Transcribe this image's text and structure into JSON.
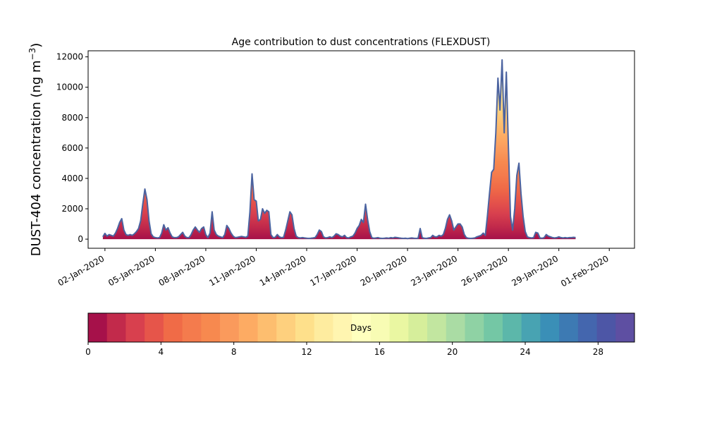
{
  "chart_data": {
    "type": "area",
    "title": "Age contribution to dust concentrations (FLEXDUST)",
    "ylabel_main": "DUST-404 concentration (ng m",
    "ylabel_sup": "−3",
    "ylabel_close": ")",
    "xlabel": "",
    "x_tick_labels": [
      "02-Jan-2020",
      "05-Jan-2020",
      "08-Jan-2020",
      "11-Jan-2020",
      "14-Jan-2020",
      "17-Jan-2020",
      "20-Jan-2020",
      "23-Jan-2020",
      "26-Jan-2020",
      "29-Jan-2020",
      "01-Feb-2020"
    ],
    "x_tick_dates": [
      "2020-01-02",
      "2020-01-05",
      "2020-01-08",
      "2020-01-11",
      "2020-01-14",
      "2020-01-17",
      "2020-01-20",
      "2020-01-23",
      "2020-01-26",
      "2020-01-29",
      "2020-02-01"
    ],
    "xlim": [
      "2020-01-01T00:00",
      "2020-02-02T12:00"
    ],
    "ylim": [
      -600,
      12400
    ],
    "y_ticks": [
      0,
      2000,
      4000,
      6000,
      8000,
      10000,
      12000
    ],
    "grid": false,
    "total_series": {
      "name": "",
      "color": "#4b63a0",
      "points": [
        [
          "2020-01-01T21:00",
          150
        ],
        [
          "2020-01-02T00:00",
          380
        ],
        [
          "2020-01-02T03:00",
          200
        ],
        [
          "2020-01-02T06:00",
          300
        ],
        [
          "2020-01-02T09:00",
          250
        ],
        [
          "2020-01-02T12:00",
          200
        ],
        [
          "2020-01-02T15:00",
          400
        ],
        [
          "2020-01-02T18:00",
          700
        ],
        [
          "2020-01-02T21:00",
          1100
        ],
        [
          "2020-01-03T00:00",
          1350
        ],
        [
          "2020-01-03T03:00",
          600
        ],
        [
          "2020-01-03T06:00",
          300
        ],
        [
          "2020-01-03T09:00",
          250
        ],
        [
          "2020-01-03T12:00",
          300
        ],
        [
          "2020-01-03T15:00",
          250
        ],
        [
          "2020-01-03T18:00",
          350
        ],
        [
          "2020-01-03T21:00",
          500
        ],
        [
          "2020-01-04T00:00",
          700
        ],
        [
          "2020-01-04T03:00",
          1200
        ],
        [
          "2020-01-04T06:00",
          2300
        ],
        [
          "2020-01-04T09:00",
          3300
        ],
        [
          "2020-01-04T12:00",
          2600
        ],
        [
          "2020-01-04T15:00",
          1200
        ],
        [
          "2020-01-04T18:00",
          350
        ],
        [
          "2020-01-04T21:00",
          150
        ],
        [
          "2020-01-05T00:00",
          100
        ],
        [
          "2020-01-05T03:00",
          80
        ],
        [
          "2020-01-05T06:00",
          100
        ],
        [
          "2020-01-05T09:00",
          400
        ],
        [
          "2020-01-05T12:00",
          950
        ],
        [
          "2020-01-05T15:00",
          600
        ],
        [
          "2020-01-05T18:00",
          750
        ],
        [
          "2020-01-05T21:00",
          400
        ],
        [
          "2020-01-06T00:00",
          150
        ],
        [
          "2020-01-06T03:00",
          100
        ],
        [
          "2020-01-06T06:00",
          100
        ],
        [
          "2020-01-06T09:00",
          150
        ],
        [
          "2020-01-06T12:00",
          300
        ],
        [
          "2020-01-06T15:00",
          450
        ],
        [
          "2020-01-06T18:00",
          200
        ],
        [
          "2020-01-06T21:00",
          100
        ],
        [
          "2020-01-07T00:00",
          100
        ],
        [
          "2020-01-07T03:00",
          300
        ],
        [
          "2020-01-07T06:00",
          600
        ],
        [
          "2020-01-07T09:00",
          800
        ],
        [
          "2020-01-07T12:00",
          600
        ],
        [
          "2020-01-07T15:00",
          450
        ],
        [
          "2020-01-07T18:00",
          700
        ],
        [
          "2020-01-07T21:00",
          800
        ],
        [
          "2020-01-08T00:00",
          300
        ],
        [
          "2020-01-08T03:00",
          100
        ],
        [
          "2020-01-08T06:00",
          400
        ],
        [
          "2020-01-08T09:00",
          1800
        ],
        [
          "2020-01-08T12:00",
          600
        ],
        [
          "2020-01-08T15:00",
          300
        ],
        [
          "2020-01-08T18:00",
          200
        ],
        [
          "2020-01-08T21:00",
          150
        ],
        [
          "2020-01-09T00:00",
          100
        ],
        [
          "2020-01-09T03:00",
          300
        ],
        [
          "2020-01-09T06:00",
          900
        ],
        [
          "2020-01-09T09:00",
          700
        ],
        [
          "2020-01-09T12:00",
          400
        ],
        [
          "2020-01-09T15:00",
          200
        ],
        [
          "2020-01-09T18:00",
          100
        ],
        [
          "2020-01-09T21:00",
          120
        ],
        [
          "2020-01-10T00:00",
          150
        ],
        [
          "2020-01-10T03:00",
          180
        ],
        [
          "2020-01-10T06:00",
          150
        ],
        [
          "2020-01-10T09:00",
          120
        ],
        [
          "2020-01-10T12:00",
          200
        ],
        [
          "2020-01-10T15:00",
          1800
        ],
        [
          "2020-01-10T18:00",
          4300
        ],
        [
          "2020-01-10T21:00",
          2600
        ],
        [
          "2020-01-11T00:00",
          2500
        ],
        [
          "2020-01-11T03:00",
          1200
        ],
        [
          "2020-01-11T06:00",
          1300
        ],
        [
          "2020-01-11T09:00",
          2000
        ],
        [
          "2020-01-11T12:00",
          1700
        ],
        [
          "2020-01-11T15:00",
          1900
        ],
        [
          "2020-01-11T18:00",
          1800
        ],
        [
          "2020-01-11T21:00",
          300
        ],
        [
          "2020-01-12T00:00",
          100
        ],
        [
          "2020-01-12T03:00",
          120
        ],
        [
          "2020-01-12T06:00",
          300
        ],
        [
          "2020-01-12T09:00",
          150
        ],
        [
          "2020-01-12T12:00",
          100
        ],
        [
          "2020-01-12T15:00",
          120
        ],
        [
          "2020-01-12T18:00",
          600
        ],
        [
          "2020-01-12T21:00",
          1200
        ],
        [
          "2020-01-13T00:00",
          1800
        ],
        [
          "2020-01-13T03:00",
          1600
        ],
        [
          "2020-01-13T06:00",
          700
        ],
        [
          "2020-01-13T09:00",
          200
        ],
        [
          "2020-01-13T12:00",
          100
        ],
        [
          "2020-01-13T15:00",
          80
        ],
        [
          "2020-01-13T18:00",
          100
        ],
        [
          "2020-01-13T21:00",
          80
        ],
        [
          "2020-01-14T00:00",
          60
        ],
        [
          "2020-01-14T03:00",
          50
        ],
        [
          "2020-01-14T06:00",
          60
        ],
        [
          "2020-01-14T09:00",
          80
        ],
        [
          "2020-01-14T12:00",
          100
        ],
        [
          "2020-01-14T15:00",
          300
        ],
        [
          "2020-01-14T18:00",
          600
        ],
        [
          "2020-01-14T21:00",
          500
        ],
        [
          "2020-01-15T00:00",
          150
        ],
        [
          "2020-01-15T03:00",
          80
        ],
        [
          "2020-01-15T06:00",
          100
        ],
        [
          "2020-01-15T09:00",
          150
        ],
        [
          "2020-01-15T12:00",
          100
        ],
        [
          "2020-01-15T15:00",
          200
        ],
        [
          "2020-01-15T18:00",
          350
        ],
        [
          "2020-01-15T21:00",
          300
        ],
        [
          "2020-01-16T00:00",
          200
        ],
        [
          "2020-01-16T03:00",
          150
        ],
        [
          "2020-01-16T06:00",
          250
        ],
        [
          "2020-01-16T09:00",
          100
        ],
        [
          "2020-01-16T12:00",
          80
        ],
        [
          "2020-01-16T15:00",
          150
        ],
        [
          "2020-01-16T18:00",
          200
        ],
        [
          "2020-01-16T21:00",
          400
        ],
        [
          "2020-01-17T00:00",
          700
        ],
        [
          "2020-01-17T03:00",
          900
        ],
        [
          "2020-01-17T06:00",
          1300
        ],
        [
          "2020-01-17T09:00",
          1100
        ],
        [
          "2020-01-17T12:00",
          2300
        ],
        [
          "2020-01-17T15:00",
          1300
        ],
        [
          "2020-01-17T18:00",
          500
        ],
        [
          "2020-01-17T21:00",
          100
        ],
        [
          "2020-01-18T00:00",
          60
        ],
        [
          "2020-01-18T03:00",
          80
        ],
        [
          "2020-01-18T06:00",
          100
        ],
        [
          "2020-01-18T09:00",
          60
        ],
        [
          "2020-01-18T12:00",
          50
        ],
        [
          "2020-01-18T15:00",
          60
        ],
        [
          "2020-01-18T18:00",
          80
        ],
        [
          "2020-01-18T21:00",
          60
        ],
        [
          "2020-01-19T00:00",
          100
        ],
        [
          "2020-01-19T03:00",
          80
        ],
        [
          "2020-01-19T06:00",
          120
        ],
        [
          "2020-01-19T09:00",
          100
        ],
        [
          "2020-01-19T12:00",
          80
        ],
        [
          "2020-01-19T15:00",
          60
        ],
        [
          "2020-01-19T18:00",
          50
        ],
        [
          "2020-01-19T21:00",
          60
        ],
        [
          "2020-01-20T00:00",
          40
        ],
        [
          "2020-01-20T03:00",
          60
        ],
        [
          "2020-01-20T06:00",
          80
        ],
        [
          "2020-01-20T09:00",
          60
        ],
        [
          "2020-01-20T12:00",
          50
        ],
        [
          "2020-01-20T15:00",
          60
        ],
        [
          "2020-01-20T18:00",
          700
        ],
        [
          "2020-01-20T21:00",
          100
        ],
        [
          "2020-01-21T00:00",
          60
        ],
        [
          "2020-01-21T03:00",
          50
        ],
        [
          "2020-01-21T06:00",
          80
        ],
        [
          "2020-01-21T09:00",
          100
        ],
        [
          "2020-01-21T12:00",
          250
        ],
        [
          "2020-01-21T15:00",
          150
        ],
        [
          "2020-01-21T18:00",
          150
        ],
        [
          "2020-01-21T21:00",
          250
        ],
        [
          "2020-01-22T00:00",
          200
        ],
        [
          "2020-01-22T03:00",
          300
        ],
        [
          "2020-01-22T06:00",
          700
        ],
        [
          "2020-01-22T09:00",
          1300
        ],
        [
          "2020-01-22T12:00",
          1600
        ],
        [
          "2020-01-22T15:00",
          1200
        ],
        [
          "2020-01-22T18:00",
          600
        ],
        [
          "2020-01-22T21:00",
          800
        ],
        [
          "2020-01-23T00:00",
          1000
        ],
        [
          "2020-01-23T03:00",
          1000
        ],
        [
          "2020-01-23T06:00",
          800
        ],
        [
          "2020-01-23T09:00",
          300
        ],
        [
          "2020-01-23T12:00",
          100
        ],
        [
          "2020-01-23T15:00",
          60
        ],
        [
          "2020-01-23T18:00",
          50
        ],
        [
          "2020-01-23T21:00",
          60
        ],
        [
          "2020-01-24T00:00",
          80
        ],
        [
          "2020-01-24T03:00",
          150
        ],
        [
          "2020-01-24T06:00",
          200
        ],
        [
          "2020-01-24T09:00",
          250
        ],
        [
          "2020-01-24T12:00",
          400
        ],
        [
          "2020-01-24T15:00",
          250
        ],
        [
          "2020-01-24T18:00",
          1500
        ],
        [
          "2020-01-24T21:00",
          3000
        ],
        [
          "2020-01-25T00:00",
          4400
        ],
        [
          "2020-01-25T03:00",
          4600
        ],
        [
          "2020-01-25T06:00",
          7000
        ],
        [
          "2020-01-25T09:00",
          10600
        ],
        [
          "2020-01-25T12:00",
          8500
        ],
        [
          "2020-01-25T15:00",
          11800
        ],
        [
          "2020-01-25T18:00",
          7000
        ],
        [
          "2020-01-25T21:00",
          11000
        ],
        [
          "2020-01-26T00:00",
          6000
        ],
        [
          "2020-01-26T03:00",
          1500
        ],
        [
          "2020-01-26T06:00",
          600
        ],
        [
          "2020-01-26T09:00",
          2000
        ],
        [
          "2020-01-26T12:00",
          4200
        ],
        [
          "2020-01-26T15:00",
          5000
        ],
        [
          "2020-01-26T18:00",
          3000
        ],
        [
          "2020-01-26T21:00",
          1500
        ],
        [
          "2020-01-27T00:00",
          500
        ],
        [
          "2020-01-27T03:00",
          150
        ],
        [
          "2020-01-27T06:00",
          100
        ],
        [
          "2020-01-27T09:00",
          80
        ],
        [
          "2020-01-27T12:00",
          100
        ],
        [
          "2020-01-27T15:00",
          450
        ],
        [
          "2020-01-27T18:00",
          400
        ],
        [
          "2020-01-27T21:00",
          80
        ],
        [
          "2020-01-28T00:00",
          60
        ],
        [
          "2020-01-28T03:00",
          100
        ],
        [
          "2020-01-28T06:00",
          300
        ],
        [
          "2020-01-28T09:00",
          200
        ],
        [
          "2020-01-28T12:00",
          150
        ],
        [
          "2020-01-28T15:00",
          100
        ],
        [
          "2020-01-28T18:00",
          80
        ],
        [
          "2020-01-28T21:00",
          100
        ],
        [
          "2020-01-29T00:00",
          150
        ],
        [
          "2020-01-29T03:00",
          100
        ],
        [
          "2020-01-29T06:00",
          80
        ],
        [
          "2020-01-29T09:00",
          100
        ],
        [
          "2020-01-29T12:00",
          80
        ],
        [
          "2020-01-29T15:00",
          100
        ],
        [
          "2020-01-29T18:00",
          100
        ],
        [
          "2020-01-29T21:00",
          120
        ],
        [
          "2020-01-30T00:00",
          100
        ]
      ]
    },
    "colorbar": {
      "label": "Days",
      "range": [
        0,
        30
      ],
      "ticks": [
        0,
        4,
        8,
        12,
        16,
        20,
        24,
        28
      ],
      "colors": [
        "#a6114a",
        "#c22a4b",
        "#d8404e",
        "#e6554a",
        "#f06b47",
        "#f47b4d",
        "#f7894f",
        "#fa9a5c",
        "#fdab63",
        "#fdbe6f",
        "#fed07e",
        "#fee08b",
        "#feec9f",
        "#fff5b0",
        "#ffffbe",
        "#f8fcb4",
        "#eaf7a2",
        "#d6ee9b",
        "#c2e6a0",
        "#aadca4",
        "#8fd2a4",
        "#74c7a5",
        "#5cb7aa",
        "#48a3b2",
        "#3a8fb7",
        "#3d7ab3",
        "#4466ae",
        "#4d56a6",
        "#5e4fa2"
      ]
    }
  }
}
